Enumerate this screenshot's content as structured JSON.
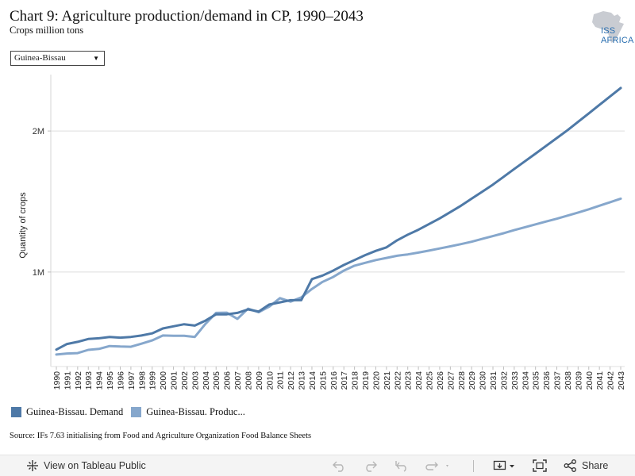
{
  "header": {
    "title": "Chart 9: Agriculture production/demand in CP, 1990–2043",
    "subtitle": "Crops million tons",
    "logo_text": "ISS AFRICA"
  },
  "filter": {
    "selected": "Guinea-Bissau"
  },
  "chart_data": {
    "type": "line",
    "ylabel": "Quantity of crops",
    "y_tick_labels": [
      "1M",
      "2M"
    ],
    "y_ticks": [
      1000000,
      2000000
    ],
    "ylim": [
      330000,
      2400000
    ],
    "grid": true,
    "x": [
      "1990",
      "1991",
      "1992",
      "1993",
      "1994",
      "1995",
      "1996",
      "1997",
      "1998",
      "1999",
      "2000",
      "2001",
      "2002",
      "2003",
      "2004",
      "2005",
      "2006",
      "2007",
      "2008",
      "2009",
      "2010",
      "2011",
      "2012",
      "2013",
      "2014",
      "2015",
      "2016",
      "2017",
      "2018",
      "2019",
      "2020",
      "2021",
      "2022",
      "2023",
      "2024",
      "2025",
      "2026",
      "2027",
      "2028",
      "2029",
      "2030",
      "2031",
      "2032",
      "2033",
      "2034",
      "2035",
      "2036",
      "2037",
      "2038",
      "2039",
      "2040",
      "2041",
      "2042",
      "2043"
    ],
    "series": [
      {
        "name": "Guinea-Bissau. Demand",
        "color": "#4e79a7",
        "values": [
          450000,
          490000,
          505000,
          525000,
          530000,
          540000,
          535000,
          540000,
          550000,
          565000,
          600000,
          615000,
          630000,
          620000,
          655000,
          700000,
          700000,
          710000,
          735000,
          720000,
          770000,
          785000,
          800000,
          800000,
          950000,
          975000,
          1010000,
          1050000,
          1085000,
          1120000,
          1150000,
          1175000,
          1225000,
          1265000,
          1300000,
          1340000,
          1380000,
          1425000,
          1470000,
          1520000,
          1570000,
          1620000,
          1675000,
          1730000,
          1785000,
          1840000,
          1895000,
          1950000,
          2005000,
          2065000,
          2125000,
          2185000,
          2245000,
          2305000
        ]
      },
      {
        "name": "Guinea-Bissau. Production",
        "legend_label": "Guinea-Bissau. Produc...",
        "color": "#86a7cc",
        "values": [
          415000,
          422000,
          425000,
          448000,
          455000,
          475000,
          472000,
          470000,
          492000,
          515000,
          550000,
          548000,
          548000,
          540000,
          632000,
          710000,
          712000,
          668000,
          740000,
          715000,
          755000,
          815000,
          790000,
          820000,
          880000,
          930000,
          965000,
          1010000,
          1045000,
          1065000,
          1085000,
          1100000,
          1115000,
          1125000,
          1138000,
          1152000,
          1167000,
          1182000,
          1198000,
          1215000,
          1235000,
          1255000,
          1275000,
          1297000,
          1318000,
          1338000,
          1358000,
          1378000,
          1400000,
          1422000,
          1445000,
          1470000,
          1495000,
          1520000
        ]
      }
    ]
  },
  "source": "Source: IFs 7.63 initialising from Food and Agriculture Organization Food Balance Sheets",
  "toolbar": {
    "view_label": "View on Tableau Public",
    "share_label": "Share"
  }
}
